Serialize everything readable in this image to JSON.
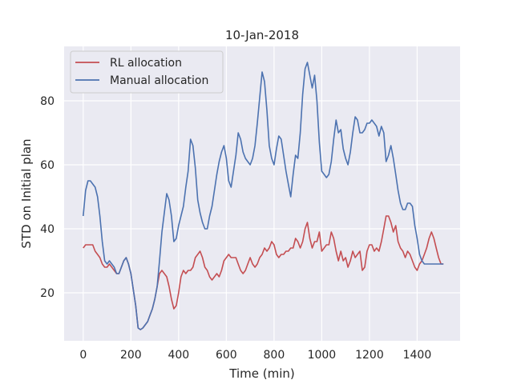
{
  "chart_data": {
    "type": "line",
    "title": "10-Jan-2018",
    "xlabel": "Time (min)",
    "ylabel": "STD on Initial plan",
    "xlim": [
      -80,
      1580
    ],
    "ylim": [
      5,
      97
    ],
    "x_ticks": [
      0,
      200,
      400,
      600,
      800,
      1000,
      1200,
      1400
    ],
    "y_ticks": [
      20,
      40,
      60,
      80
    ],
    "grid": true,
    "legend_position": "top-left",
    "colors": {
      "RL allocation": "#c44e52",
      "Manual allocation": "#4c72b0"
    },
    "series": [
      {
        "name": "RL allocation",
        "x": [
          0,
          10,
          20,
          30,
          40,
          50,
          60,
          70,
          80,
          90,
          100,
          110,
          120,
          130,
          140,
          150,
          160,
          170,
          180,
          190,
          200,
          210,
          220,
          230,
          240,
          250,
          260,
          270,
          280,
          290,
          300,
          310,
          320,
          330,
          340,
          350,
          360,
          370,
          380,
          390,
          400,
          410,
          420,
          430,
          440,
          450,
          460,
          470,
          480,
          490,
          500,
          510,
          520,
          530,
          540,
          550,
          560,
          570,
          580,
          590,
          600,
          610,
          620,
          630,
          640,
          650,
          660,
          670,
          680,
          690,
          700,
          710,
          720,
          730,
          740,
          750,
          760,
          770,
          780,
          790,
          800,
          810,
          820,
          830,
          840,
          850,
          860,
          870,
          880,
          890,
          900,
          910,
          920,
          930,
          940,
          950,
          960,
          970,
          980,
          990,
          1000,
          1010,
          1020,
          1030,
          1040,
          1050,
          1060,
          1070,
          1080,
          1090,
          1100,
          1110,
          1120,
          1130,
          1140,
          1150,
          1160,
          1170,
          1180,
          1190,
          1200,
          1210,
          1220,
          1230,
          1240,
          1250,
          1260,
          1270,
          1280,
          1290,
          1300,
          1310,
          1320,
          1330,
          1340,
          1350,
          1360,
          1370,
          1380,
          1390,
          1400,
          1410,
          1420,
          1430,
          1440,
          1450,
          1460,
          1470,
          1480,
          1490,
          1500,
          1510
        ],
        "values": [
          34,
          35,
          35,
          35,
          35,
          33,
          32,
          31,
          29,
          28,
          28,
          29,
          28,
          27,
          26,
          26,
          28,
          30,
          31,
          29,
          26,
          21,
          16,
          9,
          8.5,
          9,
          10,
          11,
          13,
          15,
          18,
          22,
          26,
          27,
          26,
          25,
          22,
          18,
          15,
          16,
          20,
          25,
          27,
          26,
          27,
          27,
          28,
          31,
          32,
          33,
          31,
          28,
          27,
          25,
          24,
          25,
          26,
          25,
          27,
          30,
          31,
          32,
          31,
          31,
          31,
          29,
          27,
          26,
          27,
          29,
          31,
          29,
          28,
          29,
          31,
          32,
          34,
          33,
          34,
          36,
          35,
          32,
          31,
          32,
          32,
          33,
          33,
          34,
          34,
          37,
          36,
          34,
          36,
          40,
          42,
          37,
          34,
          36,
          36,
          39,
          33,
          34,
          35,
          35,
          39,
          37,
          33,
          30,
          33,
          30,
          31,
          28,
          30,
          33,
          31,
          32,
          33,
          27,
          28,
          33,
          35,
          35,
          33,
          34,
          33,
          36,
          40,
          44,
          44,
          42,
          39,
          41,
          36,
          34,
          33,
          31,
          33,
          32,
          30,
          28,
          27,
          29,
          30,
          32,
          34,
          37,
          39,
          37,
          34,
          31,
          29,
          29
        ],
        "style": "line"
      },
      {
        "name": "Manual allocation",
        "x": [
          0,
          10,
          20,
          30,
          40,
          50,
          60,
          70,
          80,
          90,
          100,
          110,
          120,
          130,
          140,
          150,
          160,
          170,
          180,
          190,
          200,
          210,
          220,
          230,
          240,
          250,
          260,
          270,
          280,
          290,
          300,
          310,
          320,
          330,
          340,
          350,
          360,
          370,
          380,
          390,
          400,
          410,
          420,
          430,
          440,
          450,
          460,
          470,
          480,
          490,
          500,
          510,
          520,
          530,
          540,
          550,
          560,
          570,
          580,
          590,
          600,
          610,
          620,
          630,
          640,
          650,
          660,
          670,
          680,
          690,
          700,
          710,
          720,
          730,
          740,
          750,
          760,
          770,
          780,
          790,
          800,
          810,
          820,
          830,
          840,
          850,
          860,
          870,
          880,
          890,
          900,
          910,
          920,
          930,
          940,
          950,
          960,
          970,
          980,
          990,
          1000,
          1010,
          1020,
          1030,
          1040,
          1050,
          1060,
          1070,
          1080,
          1090,
          1100,
          1110,
          1120,
          1130,
          1140,
          1150,
          1160,
          1170,
          1180,
          1190,
          1200,
          1210,
          1220,
          1230,
          1240,
          1250,
          1260,
          1270,
          1280,
          1290,
          1300,
          1310,
          1320,
          1330,
          1340,
          1350,
          1360,
          1370,
          1380,
          1390,
          1400,
          1410,
          1420,
          1430,
          1440,
          1450,
          1460,
          1470,
          1480,
          1490,
          1500,
          1510
        ],
        "values": [
          44,
          52,
          55,
          55,
          54,
          53,
          50,
          44,
          36,
          30,
          29,
          30,
          29,
          28,
          26,
          26,
          28,
          30,
          31,
          29,
          26,
          21,
          16,
          9,
          8.5,
          9,
          10,
          11,
          13,
          15,
          18,
          22,
          30,
          39,
          45,
          51,
          49,
          44,
          36,
          37,
          41,
          44,
          47,
          53,
          58,
          68,
          66,
          59,
          49,
          45,
          42,
          40,
          40,
          44,
          47,
          52,
          57,
          61,
          64,
          66,
          62,
          55,
          53,
          58,
          63,
          70,
          68,
          64,
          62,
          61,
          60,
          62,
          66,
          73,
          81,
          89,
          86,
          77,
          66,
          62,
          60,
          65,
          69,
          68,
          63,
          58,
          54,
          50,
          57,
          63,
          62,
          70,
          82,
          90,
          92,
          88,
          84,
          88,
          80,
          67,
          58,
          57,
          56,
          57,
          61,
          68,
          74,
          70,
          71,
          65,
          62,
          60,
          64,
          70,
          75,
          74,
          70,
          70,
          71,
          73,
          73,
          74,
          73,
          72,
          69,
          72,
          70,
          61,
          63,
          66,
          62,
          57,
          52,
          48,
          46,
          46,
          48,
          48,
          47,
          41,
          37,
          32,
          30,
          29,
          29,
          29,
          29,
          29,
          29,
          29,
          29,
          29
        ],
        "style": "line"
      }
    ]
  }
}
